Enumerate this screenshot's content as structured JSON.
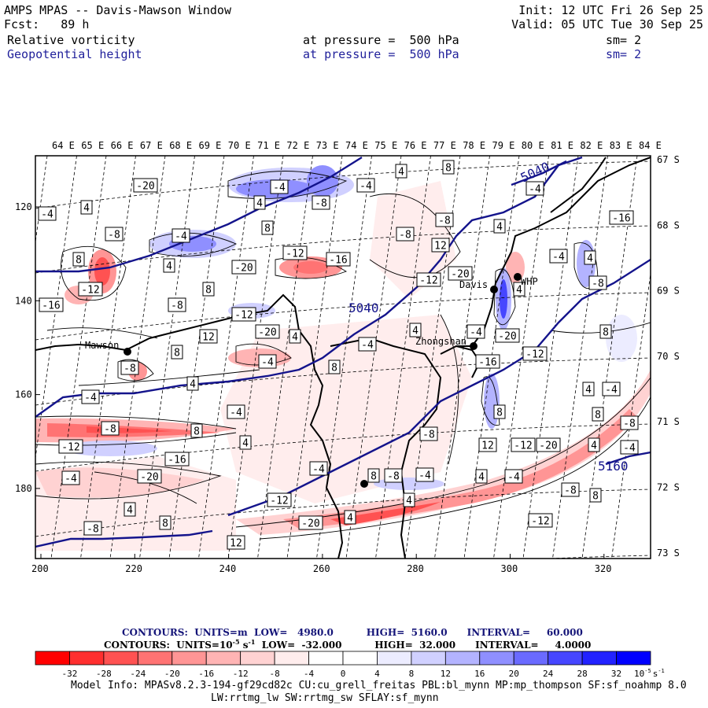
{
  "header": {
    "title": "AMPS MPAS -- Davis-Mawson Window",
    "fcst_label": "Fcst:",
    "fcst_value": "89 h",
    "init": "Init: 12 UTC Fri 26 Sep 25",
    "valid": "Valid: 05 UTC Tue 30 Sep 25",
    "field1": {
      "name": "Relative vorticity",
      "pressure_label": "at pressure =",
      "pressure": "500 hPa",
      "sm": "sm= 2"
    },
    "field2": {
      "name": "Geopotential height",
      "pressure_label": "at pressure =",
      "pressure": "500 hPa",
      "sm": "sm= 2"
    }
  },
  "colors": {
    "contour_height": "#14148c",
    "coast": "#000000",
    "neg_strong": "#ff0000",
    "pos_strong": "#0000ff"
  },
  "map": {
    "lon_labels": [
      "64 E",
      "65 E",
      "66 E",
      "67 E",
      "68 E",
      "69 E",
      "70 E",
      "71 E",
      "72 E",
      "73 E",
      "74 E",
      "75 E",
      "76 E",
      "77 E",
      "78 E",
      "79 E",
      "80 E",
      "81 E",
      "82 E",
      "83 E",
      "84 E"
    ],
    "lat_labels": [
      "67 S",
      "68 S",
      "69 S",
      "70 S",
      "71 S",
      "72 S",
      "73 S"
    ],
    "x_ticks": [
      "200",
      "220",
      "240",
      "260",
      "280",
      "300",
      "320"
    ],
    "y_ticks": [
      "120",
      "140",
      "160",
      "180"
    ],
    "stations": [
      "Mawson",
      "Davis",
      "Zhongshan",
      "WHP"
    ],
    "height_labels": [
      "5040",
      "5040",
      "5160"
    ],
    "vort_labels": [
      "-4",
      "4",
      "-8",
      "8",
      "-12",
      "-16",
      "-20",
      "-4",
      "4",
      "8",
      "-8",
      "12",
      "-12",
      "-20",
      "4",
      "-4",
      "8",
      "-8",
      "4",
      "-4"
    ]
  },
  "footer": {
    "line1": {
      "contours": "CONTOURS:",
      "units": "UNITS=m",
      "low": "LOW=   4980.0",
      "high": "HIGH=  5160.0",
      "interval": "INTERVAL=     60.000"
    },
    "line2": {
      "contours": "CONTOURS:",
      "units": "UNITS=10",
      "units_exp": "-5",
      "units_suffix": "s",
      "units_suffix_exp": "-1",
      "low": "LOW=  -32.000",
      "high": "HIGH=  32.000",
      "interval": "INTERVAL=     4.0000"
    }
  },
  "colorbar": {
    "colors": [
      "#ff0000",
      "#ff2f2f",
      "#ff5252",
      "#ff7373",
      "#ff9595",
      "#ffb4b4",
      "#ffd2d2",
      "#ffeded",
      "#ffffff",
      "#ffffff",
      "#ececff",
      "#d0d0ff",
      "#b3b3ff",
      "#8f8fff",
      "#6a6aff",
      "#4646ff",
      "#2222ff",
      "#0000ff"
    ],
    "tick_labels": [
      "-32",
      "-28",
      "-24",
      "-20",
      "-16",
      "-12",
      "-8",
      "-4",
      "0",
      "4",
      "8",
      "12",
      "16",
      "20",
      "24",
      "28",
      "32"
    ],
    "unit": "10",
    "unit_exp": "-5",
    "unit_suffix": "s",
    "unit_suffix_exp": "-1"
  },
  "model_info": {
    "line1": "Model Info: MPASv8.2.3-194-gf29cd82c CU:cu_grell_freitas PBL:bl_mynn MP:mp_thompson SF:sf_noahmp 8.0",
    "line2": "LW:rrtmg_lw SW:rrtmg_sw SFLAY:sf_mynn"
  }
}
